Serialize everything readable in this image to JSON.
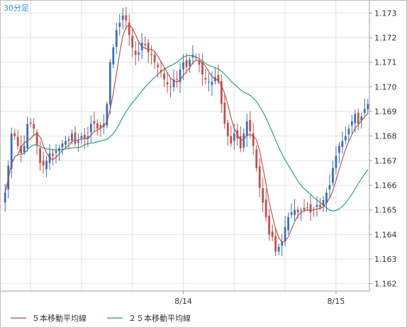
{
  "timeframe_label": "30分足",
  "colors": {
    "up": "#3b6fb6",
    "down": "#c0504d",
    "ma5": "#b04a3f",
    "ma25": "#1a9a7a",
    "grid": "#e2e2e2",
    "axis": "#9e9e9e"
  },
  "legend": {
    "ma5_label": "５本移動平均線",
    "ma25_label": "２５本移動平均線"
  },
  "chart_data": {
    "type": "candlestick",
    "interval": "30min",
    "x_tick_labels": [
      {
        "label": "8/14",
        "index": 56
      },
      {
        "label": "8/15",
        "index": 104
      }
    ],
    "y_ticks": [
      1.162,
      1.163,
      1.164,
      1.165,
      1.166,
      1.167,
      1.168,
      1.169,
      1.17,
      1.171,
      1.172,
      1.173
    ],
    "ylim": [
      1.1617,
      1.1735
    ],
    "grid": true,
    "series": [
      {
        "name": "５本移動平均線",
        "kind": "line"
      },
      {
        "name": "２５本移動平均線",
        "kind": "line"
      }
    ],
    "close_estimates": [
      1.1657,
      1.1668,
      1.1681,
      1.168,
      1.1676,
      1.1673,
      1.1676,
      1.1685,
      1.1685,
      1.1683,
      1.1676,
      1.1669,
      1.1668,
      1.167,
      1.1673,
      1.1672,
      1.1674,
      1.1675,
      1.1677,
      1.1678,
      1.1678,
      1.1681,
      1.1677,
      1.1678,
      1.168,
      1.1679,
      1.168,
      1.1685,
      1.1685,
      1.1683,
      1.1683,
      1.1685,
      1.1693,
      1.171,
      1.1716,
      1.1723,
      1.1726,
      1.1729,
      1.1727,
      1.1721,
      1.1716,
      1.1713,
      1.1714,
      1.1718,
      1.1717,
      1.1714,
      1.1713,
      1.171,
      1.1708,
      1.1706,
      1.1703,
      1.1701,
      1.17,
      1.1703,
      1.1703,
      1.1707,
      1.171,
      1.1708,
      1.1711,
      1.1713,
      1.1712,
      1.1709,
      1.1705,
      1.1703,
      1.1702,
      1.1702,
      1.1704,
      1.1702,
      1.1693,
      1.1685,
      1.168,
      1.1677,
      1.1681,
      1.1679,
      1.1675,
      1.1681,
      1.1686,
      1.1682,
      1.1676,
      1.1667,
      1.1659,
      1.1653,
      1.1647,
      1.164,
      1.1639,
      1.1633,
      1.1635,
      1.1637,
      1.1643,
      1.1647,
      1.1649,
      1.165,
      1.1649,
      1.165,
      1.165,
      1.1651,
      1.1649,
      1.165,
      1.1652,
      1.1651,
      1.1654,
      1.1657,
      1.166,
      1.1667,
      1.1672,
      1.1676,
      1.1678,
      1.168,
      1.1683,
      1.1686,
      1.1689,
      1.1685,
      1.1688,
      1.1691,
      1.1693
    ]
  }
}
